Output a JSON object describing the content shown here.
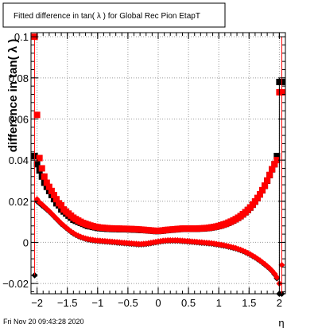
{
  "chart_data": {
    "type": "scatter",
    "title": "Fitted difference in tan( λ ) for Global Rec Pion EtapT",
    "xlabel": "η",
    "ylabel": "difference in tan( λ )",
    "xlim": [
      -2.1,
      2.1
    ],
    "ylim": [
      -0.025,
      0.102
    ],
    "x_ticks": [
      -2,
      -1.5,
      -1,
      -0.5,
      0,
      0.5,
      1,
      1.5,
      2
    ],
    "x_tick_labels": [
      "−2",
      "−1.5",
      "−1",
      "−0.5",
      "0",
      "0.5",
      "1",
      "1.5",
      "2"
    ],
    "y_ticks": [
      -0.02,
      0,
      0.02,
      0.04,
      0.06,
      0.08,
      0.1
    ],
    "y_tick_labels": [
      "−0.02",
      "0",
      "0.02",
      "0.04",
      "0.06",
      "0.08",
      "0.1"
    ],
    "grid": true,
    "timestamp": "Fri Nov 20 09:43:28 2020",
    "series": [
      {
        "color": "#000000",
        "marker": "square",
        "x": [
          -2.04,
          -2.0,
          -1.96,
          -1.92,
          -1.88,
          -1.84,
          -1.8,
          -1.76,
          -1.72,
          -1.68,
          -1.64,
          -1.6,
          -1.56,
          -1.52,
          -1.48,
          -1.44,
          -1.4,
          -1.36,
          -1.32,
          -1.28,
          -1.24,
          -1.2,
          -1.16,
          -1.12,
          -1.08,
          -1.04,
          -1.0,
          -0.96,
          -0.92,
          -0.88,
          -0.84,
          -0.8,
          -0.76,
          -0.72,
          -0.68,
          -0.64,
          -0.6,
          -0.56,
          -0.52,
          -0.48,
          -0.44,
          -0.4,
          -0.36,
          -0.32,
          -0.28,
          -0.24,
          -0.2,
          -0.16,
          -0.12,
          -0.08,
          -0.04,
          0.0,
          0.04,
          0.08,
          0.12,
          0.16,
          0.2,
          0.24,
          0.28,
          0.32,
          0.36,
          0.4,
          0.44,
          0.48,
          0.52,
          0.56,
          0.6,
          0.64,
          0.68,
          0.72,
          0.76,
          0.8,
          0.84,
          0.88,
          0.92,
          0.96,
          1.0,
          1.04,
          1.08,
          1.12,
          1.16,
          1.2,
          1.24,
          1.28,
          1.32,
          1.36,
          1.4,
          1.44,
          1.48,
          1.52,
          1.56,
          1.6,
          1.64,
          1.68,
          1.72,
          1.76,
          1.8,
          1.84,
          1.88,
          1.92,
          1.96,
          2.0,
          2.04
        ],
        "y": [
          0.042,
          0.038,
          0.035,
          0.032,
          0.029,
          0.027,
          0.025,
          0.023,
          0.021,
          0.019,
          0.018,
          0.016,
          0.015,
          0.014,
          0.013,
          0.012,
          0.011,
          0.0105,
          0.01,
          0.0095,
          0.009,
          0.0085,
          0.008,
          0.0078,
          0.0075,
          0.0073,
          0.007,
          0.0069,
          0.0068,
          0.0067,
          0.0066,
          0.0066,
          0.0065,
          0.0065,
          0.0065,
          0.0064,
          0.0064,
          0.0064,
          0.0064,
          0.0063,
          0.0063,
          0.0062,
          0.0062,
          0.0061,
          0.006,
          0.006,
          0.0059,
          0.0058,
          0.0057,
          0.0056,
          0.0055,
          0.0055,
          0.0056,
          0.0057,
          0.0059,
          0.006,
          0.0061,
          0.0062,
          0.0063,
          0.0064,
          0.0065,
          0.0066,
          0.0066,
          0.0066,
          0.0066,
          0.0066,
          0.0066,
          0.0066,
          0.0067,
          0.0067,
          0.0068,
          0.0069,
          0.007,
          0.0072,
          0.0074,
          0.0076,
          0.0079,
          0.0082,
          0.0086,
          0.009,
          0.0095,
          0.01,
          0.0106,
          0.0112,
          0.0119,
          0.0127,
          0.0136,
          0.0146,
          0.0157,
          0.0169,
          0.0183,
          0.0198,
          0.0215,
          0.0233,
          0.0253,
          0.0275,
          0.03,
          0.0327,
          0.0355,
          0.038,
          0.042,
          0.078,
          0.078
        ]
      },
      {
        "color": "#ff0000",
        "marker": "square",
        "x": [
          -2.04,
          -2.0,
          -1.96,
          -1.92,
          -1.88,
          -1.84,
          -1.8,
          -1.76,
          -1.72,
          -1.68,
          -1.64,
          -1.6,
          -1.56,
          -1.52,
          -1.48,
          -1.44,
          -1.4,
          -1.36,
          -1.32,
          -1.28,
          -1.24,
          -1.2,
          -1.16,
          -1.12,
          -1.08,
          -1.04,
          -1.0,
          -0.96,
          -0.92,
          -0.88,
          -0.84,
          -0.8,
          -0.76,
          -0.72,
          -0.68,
          -0.64,
          -0.6,
          -0.56,
          -0.52,
          -0.48,
          -0.44,
          -0.4,
          -0.36,
          -0.32,
          -0.28,
          -0.24,
          -0.2,
          -0.16,
          -0.12,
          -0.08,
          -0.04,
          0.0,
          0.04,
          0.08,
          0.12,
          0.16,
          0.2,
          0.24,
          0.28,
          0.32,
          0.36,
          0.4,
          0.44,
          0.48,
          0.52,
          0.56,
          0.6,
          0.64,
          0.68,
          0.72,
          0.76,
          0.8,
          0.84,
          0.88,
          0.92,
          0.96,
          1.0,
          1.04,
          1.08,
          1.12,
          1.16,
          1.2,
          1.24,
          1.28,
          1.32,
          1.36,
          1.4,
          1.44,
          1.48,
          1.52,
          1.56,
          1.6,
          1.64,
          1.68,
          1.72,
          1.76,
          1.8,
          1.84,
          1.88,
          1.92,
          1.96,
          2.0,
          2.04
        ],
        "y": [
          0.1,
          0.062,
          0.041,
          0.036,
          0.032,
          0.029,
          0.027,
          0.025,
          0.023,
          0.021,
          0.019,
          0.018,
          0.016,
          0.015,
          0.014,
          0.013,
          0.012,
          0.0113,
          0.0106,
          0.01,
          0.0094,
          0.009,
          0.0086,
          0.0082,
          0.0079,
          0.0076,
          0.0074,
          0.0072,
          0.0071,
          0.007,
          0.0069,
          0.0068,
          0.0068,
          0.0067,
          0.0067,
          0.0067,
          0.0066,
          0.0066,
          0.0066,
          0.0065,
          0.0065,
          0.0064,
          0.0064,
          0.0063,
          0.0062,
          0.0061,
          0.006,
          0.0059,
          0.0058,
          0.0057,
          0.0056,
          0.0056,
          0.0057,
          0.0058,
          0.006,
          0.0061,
          0.0062,
          0.0063,
          0.0064,
          0.0065,
          0.0066,
          0.0067,
          0.0067,
          0.0067,
          0.0067,
          0.0067,
          0.0067,
          0.0067,
          0.0068,
          0.0068,
          0.0069,
          0.007,
          0.0071,
          0.0073,
          0.0075,
          0.0077,
          0.008,
          0.0083,
          0.0087,
          0.0091,
          0.0096,
          0.0101,
          0.0107,
          0.0113,
          0.012,
          0.0128,
          0.0137,
          0.0147,
          0.0158,
          0.017,
          0.0184,
          0.0199,
          0.0216,
          0.0234,
          0.0254,
          0.0276,
          0.0301,
          0.0328,
          0.0356,
          0.038,
          0.04,
          0.073,
          0.073
        ]
      },
      {
        "color": "#000000",
        "marker": "diamond",
        "x": [
          -2.04,
          -2.0,
          -1.96,
          -1.92,
          -1.88,
          -1.84,
          -1.8,
          -1.76,
          -1.72,
          -1.68,
          -1.64,
          -1.6,
          -1.56,
          -1.52,
          -1.48,
          -1.44,
          -1.4,
          -1.36,
          -1.32,
          -1.28,
          -1.24,
          -1.2,
          -1.16,
          -1.12,
          -1.08,
          -1.04,
          -1.0,
          -0.96,
          -0.92,
          -0.88,
          -0.84,
          -0.8,
          -0.76,
          -0.72,
          -0.68,
          -0.64,
          -0.6,
          -0.56,
          -0.52,
          -0.48,
          -0.44,
          -0.4,
          -0.36,
          -0.32,
          -0.28,
          -0.24,
          -0.2,
          -0.16,
          -0.12,
          -0.08,
          -0.04,
          0.0,
          0.04,
          0.08,
          0.12,
          0.16,
          0.2,
          0.24,
          0.28,
          0.32,
          0.36,
          0.4,
          0.44,
          0.48,
          0.52,
          0.56,
          0.6,
          0.64,
          0.68,
          0.72,
          0.76,
          0.8,
          0.84,
          0.88,
          0.92,
          0.96,
          1.0,
          1.04,
          1.08,
          1.12,
          1.16,
          1.2,
          1.24,
          1.28,
          1.32,
          1.36,
          1.4,
          1.44,
          1.48,
          1.52,
          1.56,
          1.6,
          1.64,
          1.68,
          1.72,
          1.76,
          1.8,
          1.84,
          1.88,
          1.92,
          1.96,
          2.0,
          2.04
        ],
        "y": [
          -0.016,
          0.02,
          0.019,
          0.018,
          0.017,
          0.016,
          0.015,
          0.0138,
          0.0126,
          0.0114,
          0.0102,
          0.009,
          0.008,
          0.007,
          0.006,
          0.0051,
          0.0043,
          0.0036,
          0.003,
          0.0025,
          0.0021,
          0.0017,
          0.0014,
          0.0012,
          0.001,
          0.0008,
          0.0007,
          0.0006,
          0.0005,
          0.0004,
          0.0003,
          0.0002,
          0.0001,
          0.0,
          -0.0001,
          -0.0002,
          -0.0003,
          -0.0004,
          -0.0005,
          -0.0006,
          -0.0007,
          -0.0008,
          -0.0009,
          -0.001,
          -0.001,
          -0.0009,
          -0.0008,
          -0.0006,
          -0.0004,
          -0.0002,
          0.0,
          0.0002,
          0.0004,
          0.0006,
          0.0007,
          0.0008,
          0.0008,
          0.0008,
          0.0008,
          0.0008,
          0.0007,
          0.0006,
          0.0005,
          0.0004,
          0.0003,
          0.0002,
          0.0001,
          0.0,
          -0.0001,
          -0.0002,
          -0.0003,
          -0.0004,
          -0.0005,
          -0.0006,
          -0.0008,
          -0.001,
          -0.0012,
          -0.0014,
          -0.0016,
          -0.0018,
          -0.0021,
          -0.0024,
          -0.0027,
          -0.003,
          -0.0034,
          -0.0038,
          -0.0043,
          -0.0048,
          -0.0054,
          -0.006,
          -0.0067,
          -0.0074,
          -0.0082,
          -0.009,
          -0.0099,
          -0.0108,
          -0.0118,
          -0.0128,
          -0.014,
          -0.0155,
          -0.0175,
          -0.025,
          -0.025
        ]
      },
      {
        "color": "#ff0000",
        "marker": "diamond",
        "x": [
          -2.04,
          -2.0,
          -1.96,
          -1.92,
          -1.88,
          -1.84,
          -1.8,
          -1.76,
          -1.72,
          -1.68,
          -1.64,
          -1.6,
          -1.56,
          -1.52,
          -1.48,
          -1.44,
          -1.4,
          -1.36,
          -1.32,
          -1.28,
          -1.24,
          -1.2,
          -1.16,
          -1.12,
          -1.08,
          -1.04,
          -1.0,
          -0.96,
          -0.92,
          -0.88,
          -0.84,
          -0.8,
          -0.76,
          -0.72,
          -0.68,
          -0.64,
          -0.6,
          -0.56,
          -0.52,
          -0.48,
          -0.44,
          -0.4,
          -0.36,
          -0.32,
          -0.28,
          -0.24,
          -0.2,
          -0.16,
          -0.12,
          -0.08,
          -0.04,
          0.0,
          0.04,
          0.08,
          0.12,
          0.16,
          0.2,
          0.24,
          0.28,
          0.32,
          0.36,
          0.4,
          0.44,
          0.48,
          0.52,
          0.56,
          0.6,
          0.64,
          0.68,
          0.72,
          0.76,
          0.8,
          0.84,
          0.88,
          0.92,
          0.96,
          1.0,
          1.04,
          1.08,
          1.12,
          1.16,
          1.2,
          1.24,
          1.28,
          1.32,
          1.36,
          1.4,
          1.44,
          1.48,
          1.52,
          1.56,
          1.6,
          1.64,
          1.68,
          1.72,
          1.76,
          1.8,
          1.84,
          1.88,
          1.92,
          1.96,
          2.0,
          2.04
        ],
        "y": [
          0.1,
          0.021,
          0.0195,
          0.0185,
          0.0174,
          0.0163,
          0.0152,
          0.014,
          0.0128,
          0.0116,
          0.0104,
          0.0092,
          0.0082,
          0.0072,
          0.0062,
          0.0053,
          0.0045,
          0.0038,
          0.0032,
          0.0027,
          0.0023,
          0.0019,
          0.0016,
          0.0014,
          0.0012,
          0.001,
          0.0009,
          0.0008,
          0.0007,
          0.0006,
          0.0005,
          0.0004,
          0.0003,
          0.0002,
          0.0001,
          0.0,
          -0.0001,
          -0.0002,
          -0.0003,
          -0.0004,
          -0.0005,
          -0.0006,
          -0.0007,
          -0.0008,
          -0.0008,
          -0.0007,
          -0.0006,
          -0.0004,
          -0.0002,
          0.0,
          0.0002,
          0.0004,
          0.0006,
          0.0008,
          0.0009,
          0.001,
          0.001,
          0.001,
          0.001,
          0.001,
          0.0009,
          0.0008,
          0.0007,
          0.0006,
          0.0005,
          0.0004,
          0.0003,
          0.0002,
          0.0001,
          0.0,
          -0.0001,
          -0.0002,
          -0.0003,
          -0.0004,
          -0.0006,
          -0.0008,
          -0.001,
          -0.0012,
          -0.0014,
          -0.0016,
          -0.0019,
          -0.0022,
          -0.0025,
          -0.0028,
          -0.0032,
          -0.0036,
          -0.0041,
          -0.0046,
          -0.0052,
          -0.0058,
          -0.0065,
          -0.0072,
          -0.008,
          -0.0088,
          -0.0097,
          -0.0106,
          -0.0116,
          -0.0126,
          -0.0138,
          -0.0152,
          -0.017,
          -0.02,
          -0.011
        ]
      }
    ]
  }
}
